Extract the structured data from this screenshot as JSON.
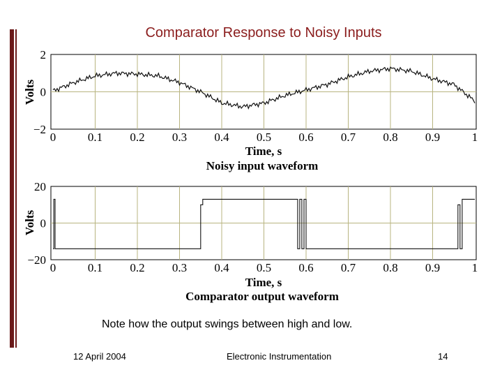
{
  "slide": {
    "title": "Comparator Response to Noisy Inputs",
    "note": "Note how the output swings between high and low.",
    "footer": {
      "date": "12 April 2004",
      "course": "Electronic Instrumentation",
      "page": "14"
    }
  },
  "chart_data": [
    {
      "type": "line",
      "caption": "Noisy input waveform",
      "xlabel": "Time, s",
      "ylabel": "Volts",
      "xlim": [
        0,
        1
      ],
      "ylim": [
        -2,
        2
      ],
      "x_ticks": [
        "0",
        "0.1",
        "0.2",
        "0.3",
        "0.4",
        "0.5",
        "0.6",
        "0.7",
        "0.8",
        "0.9",
        "1"
      ],
      "y_ticks": [
        "2",
        "0",
        "−2"
      ],
      "grid": true,
      "series": [
        {
          "x": [
            0,
            0.05,
            0.1,
            0.15,
            0.2,
            0.25,
            0.3,
            0.35,
            0.4,
            0.45,
            0.5,
            0.55,
            0.6,
            0.65,
            0.7,
            0.75,
            0.8,
            0.85,
            0.9,
            0.95,
            1.0
          ],
          "y": [
            0.05,
            0.5,
            0.85,
            1.0,
            0.95,
            0.85,
            0.5,
            0.0,
            -0.6,
            -0.8,
            -0.6,
            -0.2,
            0.1,
            0.4,
            0.8,
            1.1,
            1.25,
            1.1,
            0.7,
            0.4,
            -0.5
          ]
        }
      ]
    },
    {
      "type": "line",
      "caption": "Comparator output waveform",
      "xlabel": "Time, s",
      "ylabel": "Volts",
      "xlim": [
        0,
        1
      ],
      "ylim": [
        -20,
        20
      ],
      "x_ticks": [
        "0",
        "0.1",
        "0.2",
        "0.3",
        "0.4",
        "0.5",
        "0.6",
        "0.7",
        "0.8",
        "0.9",
        "1"
      ],
      "y_ticks": [
        "20",
        "0",
        "−20"
      ],
      "grid": true,
      "series": [
        {
          "x": [
            0,
            0.002,
            0.002,
            0.005,
            0.005,
            0.35,
            0.35,
            0.355,
            0.355,
            0.58,
            0.58,
            0.585,
            0.585,
            0.59,
            0.59,
            0.595,
            0.595,
            0.6,
            0.6,
            0.96,
            0.96,
            0.965,
            0.965,
            0.97,
            0.97,
            1.0
          ],
          "y": [
            -14,
            -14,
            13,
            13,
            -14,
            -14,
            10,
            10,
            13,
            13,
            -14,
            -14,
            13,
            13,
            -14,
            -14,
            13,
            13,
            -14,
            -14,
            10,
            10,
            -14,
            -14,
            13,
            13
          ]
        }
      ]
    }
  ]
}
